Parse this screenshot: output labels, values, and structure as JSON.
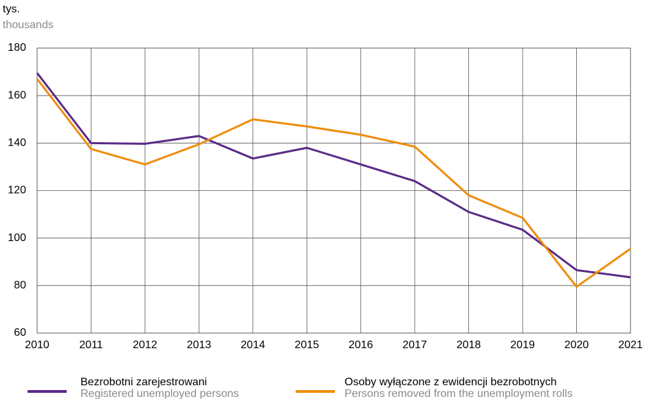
{
  "chart_data": {
    "type": "line",
    "ylabel": "tys.",
    "ylabel_en": "thousands",
    "x": [
      2010,
      2011,
      2012,
      2013,
      2014,
      2015,
      2016,
      2017,
      2018,
      2019,
      2020,
      2021
    ],
    "xlim": [
      2010,
      2021
    ],
    "xticks": [
      2010,
      2011,
      2012,
      2013,
      2014,
      2015,
      2016,
      2017,
      2018,
      2019,
      2020,
      2021
    ],
    "ylim": [
      60,
      180
    ],
    "yticks": [
      60,
      80,
      100,
      120,
      140,
      160,
      180
    ],
    "grid": true,
    "legend": "bottom",
    "series": [
      {
        "name": "Bezrobotni zarejestrowani",
        "name_en": "Registered unemployed persons",
        "color": "#5b2a86",
        "values": [
          169.5,
          140,
          139.7,
          143,
          133.5,
          138,
          131,
          124,
          111,
          103.5,
          86.5,
          83.5
        ]
      },
      {
        "name": "Osoby wyłączone z ewidencji bezrobotnych",
        "name_en": "Persons removed from the unemployment rolls",
        "color": "#ee8c0e",
        "values": [
          167,
          137.5,
          131,
          139.5,
          150,
          147,
          143.5,
          138.5,
          118,
          108.5,
          79.5,
          95.5
        ]
      }
    ]
  }
}
